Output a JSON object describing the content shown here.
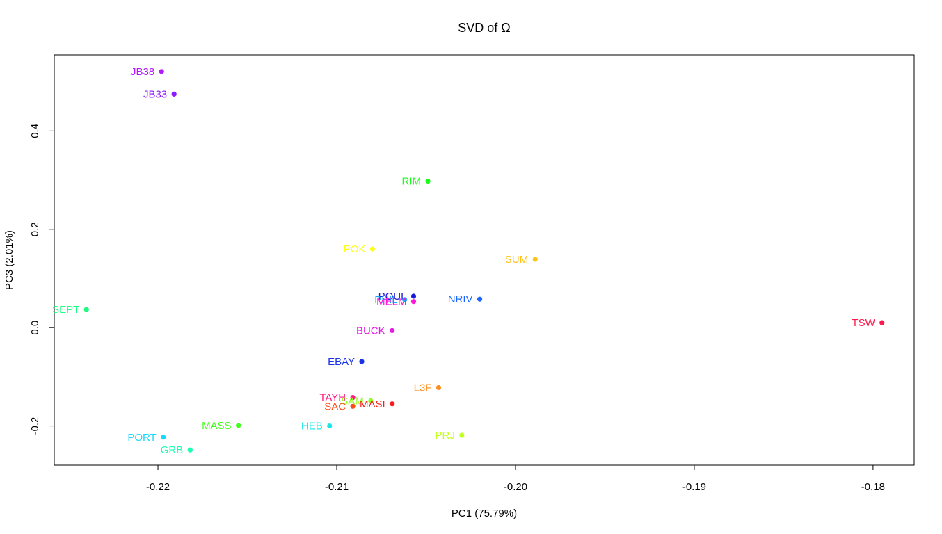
{
  "chart_data": {
    "type": "scatter",
    "title": "SVD of Ω",
    "xlabel": "PC1 (75.79%)",
    "ylabel": "PC3 (2.01%)",
    "xlim": [
      -0.2258,
      -0.1777
    ],
    "ylim": [
      -0.2798,
      0.5547
    ],
    "xticks": [
      -0.22,
      -0.21,
      -0.2,
      -0.19,
      -0.18
    ],
    "xtick_labels": [
      "-0.22",
      "-0.21",
      "-0.20",
      "-0.19",
      "-0.18"
    ],
    "yticks": [
      -0.2,
      0.0,
      0.2,
      0.4
    ],
    "ytick_labels": [
      "-0.2",
      "0.0",
      "0.2",
      "0.4"
    ],
    "grid": false,
    "points": [
      {
        "label": "JB38",
        "x": -0.2198,
        "y": 0.521,
        "color": "#b31aff"
      },
      {
        "label": "JB33",
        "x": -0.2191,
        "y": 0.475,
        "color": "#8c1aff"
      },
      {
        "label": "RIM",
        "x": -0.2049,
        "y": 0.298,
        "color": "#1aff1a"
      },
      {
        "label": "POK",
        "x": -0.208,
        "y": 0.16,
        "color": "#ffff1a"
      },
      {
        "label": "SUM",
        "x": -0.1989,
        "y": 0.139,
        "color": "#ffc21a"
      },
      {
        "label": "SEPT",
        "x": -0.224,
        "y": 0.037,
        "color": "#1aff80"
      },
      {
        "label": "POUL",
        "x": -0.2057,
        "y": 0.064,
        "color": "#1a1ad9"
      },
      {
        "label": "PHIL",
        "x": -0.2062,
        "y": 0.057,
        "color": "#1aa3ff"
      },
      {
        "label": "MELM",
        "x": -0.2057,
        "y": 0.053,
        "color": "#ff1ad9"
      },
      {
        "label": "NRIV",
        "x": -0.202,
        "y": 0.058,
        "color": "#1a66ff"
      },
      {
        "label": "TSW",
        "x": -0.1795,
        "y": 0.01,
        "color": "#ff1a4d"
      },
      {
        "label": "BUCK",
        "x": -0.2069,
        "y": -0.006,
        "color": "#e61ae6"
      },
      {
        "label": "EBAY",
        "x": -0.2086,
        "y": -0.069,
        "color": "#1a33e6"
      },
      {
        "label": "L3F",
        "x": -0.2043,
        "y": -0.122,
        "color": "#ff8c1a"
      },
      {
        "label": "TAYH",
        "x": -0.2091,
        "y": -0.142,
        "color": "#ff1a80"
      },
      {
        "label": "SAM",
        "x": -0.2081,
        "y": -0.149,
        "color": "#8cff1a"
      },
      {
        "label": "MASI",
        "x": -0.2069,
        "y": -0.155,
        "color": "#ff1a1a"
      },
      {
        "label": "SAC",
        "x": -0.2091,
        "y": -0.16,
        "color": "#ff4d1a"
      },
      {
        "label": "MASS",
        "x": -0.2155,
        "y": -0.199,
        "color": "#40ff1a"
      },
      {
        "label": "HEB",
        "x": -0.2104,
        "y": -0.2,
        "color": "#1ae6e6"
      },
      {
        "label": "PRJ",
        "x": -0.203,
        "y": -0.219,
        "color": "#c2ff1a"
      },
      {
        "label": "PORT",
        "x": -0.2197,
        "y": -0.223,
        "color": "#1ad9ff"
      },
      {
        "label": "GRB",
        "x": -0.2182,
        "y": -0.249,
        "color": "#1affb3"
      }
    ]
  }
}
